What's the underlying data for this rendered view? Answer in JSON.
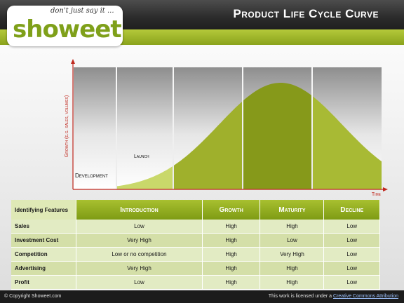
{
  "header": {
    "title": "Product Life Cycle Curve"
  },
  "logo": {
    "tagline": "don't just say it ...",
    "wordmark": "showeet"
  },
  "diagram": {
    "y_axis_label": "Growth (e.g. sales, volumes)",
    "x_axis_label": "Time",
    "stage_labels": [
      "Development",
      "Launch"
    ],
    "colors": {
      "accent": "#8aa31c",
      "axis": "#c0281e",
      "stage_launch": "#c9d86a",
      "stage_growth": "#9fb02c",
      "stage_maturity": "#86991a",
      "stage_decline": "#a8ba34"
    }
  },
  "table": {
    "header_first": "Identifying Features",
    "columns": [
      "Introduction",
      "Growth",
      "Maturity",
      "Decline"
    ],
    "rows": [
      {
        "label": "Sales",
        "values": [
          "Low",
          "High",
          "High",
          "Low"
        ]
      },
      {
        "label": "Investment Cost",
        "values": [
          "Very High",
          "High",
          "Low",
          "Low"
        ]
      },
      {
        "label": "Competition",
        "values": [
          "Low or no competition",
          "High",
          "Very High",
          "Low"
        ]
      },
      {
        "label": "Advertising",
        "values": [
          "Very High",
          "High",
          "High",
          "Low"
        ]
      },
      {
        "label": "Profit",
        "values": [
          "Low",
          "High",
          "High",
          "Low"
        ]
      }
    ]
  },
  "footer": {
    "copyright": "© Copyright Showeet.com",
    "license_prefix": "This work is licensed under a",
    "license_link": "Creative Commons Attribution"
  }
}
